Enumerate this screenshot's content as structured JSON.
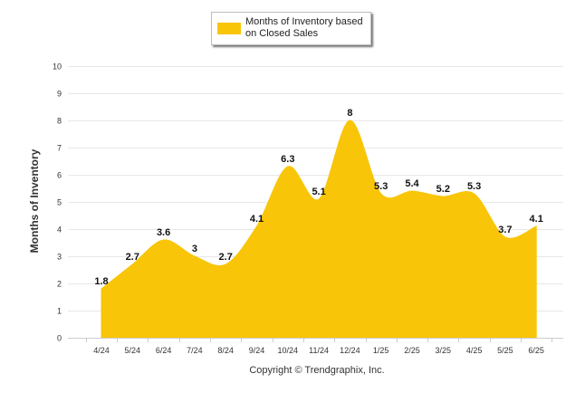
{
  "colors": {
    "area": "#F8C508",
    "grid": "#e8e8e8",
    "axis": "#cccccc",
    "text": "#333333"
  },
  "legend": {
    "label": "Months of Inventory based on Closed Sales"
  },
  "credit": "Copyright © Trendgraphix, Inc.",
  "chart_data": {
    "type": "area",
    "ylabel": "Months of Inventory",
    "ylim": [
      0,
      10
    ],
    "yticks": [
      "0",
      "1",
      "2",
      "3",
      "4",
      "5",
      "6",
      "7",
      "8",
      "9",
      "10"
    ],
    "grid": true,
    "legend_position": "top",
    "categories": [
      "4/24",
      "5/24",
      "6/24",
      "7/24",
      "8/24",
      "9/24",
      "10/24",
      "11/24",
      "12/24",
      "1/25",
      "2/25",
      "3/25",
      "4/25",
      "5/25",
      "6/25"
    ],
    "series": [
      {
        "name": "Months of Inventory based on Closed Sales",
        "values": [
          1.8,
          2.7,
          3.6,
          3,
          2.7,
          4.1,
          6.3,
          5.1,
          8,
          5.3,
          5.4,
          5.2,
          5.3,
          3.7,
          4.1
        ],
        "labels": [
          "1.8",
          "2.7",
          "3.6",
          "3",
          "2.7",
          "4.1",
          "6.3",
          "5.1",
          "8",
          "5.3",
          "5.4",
          "5.2",
          "5.3",
          "3.7",
          "4.1"
        ]
      }
    ]
  }
}
